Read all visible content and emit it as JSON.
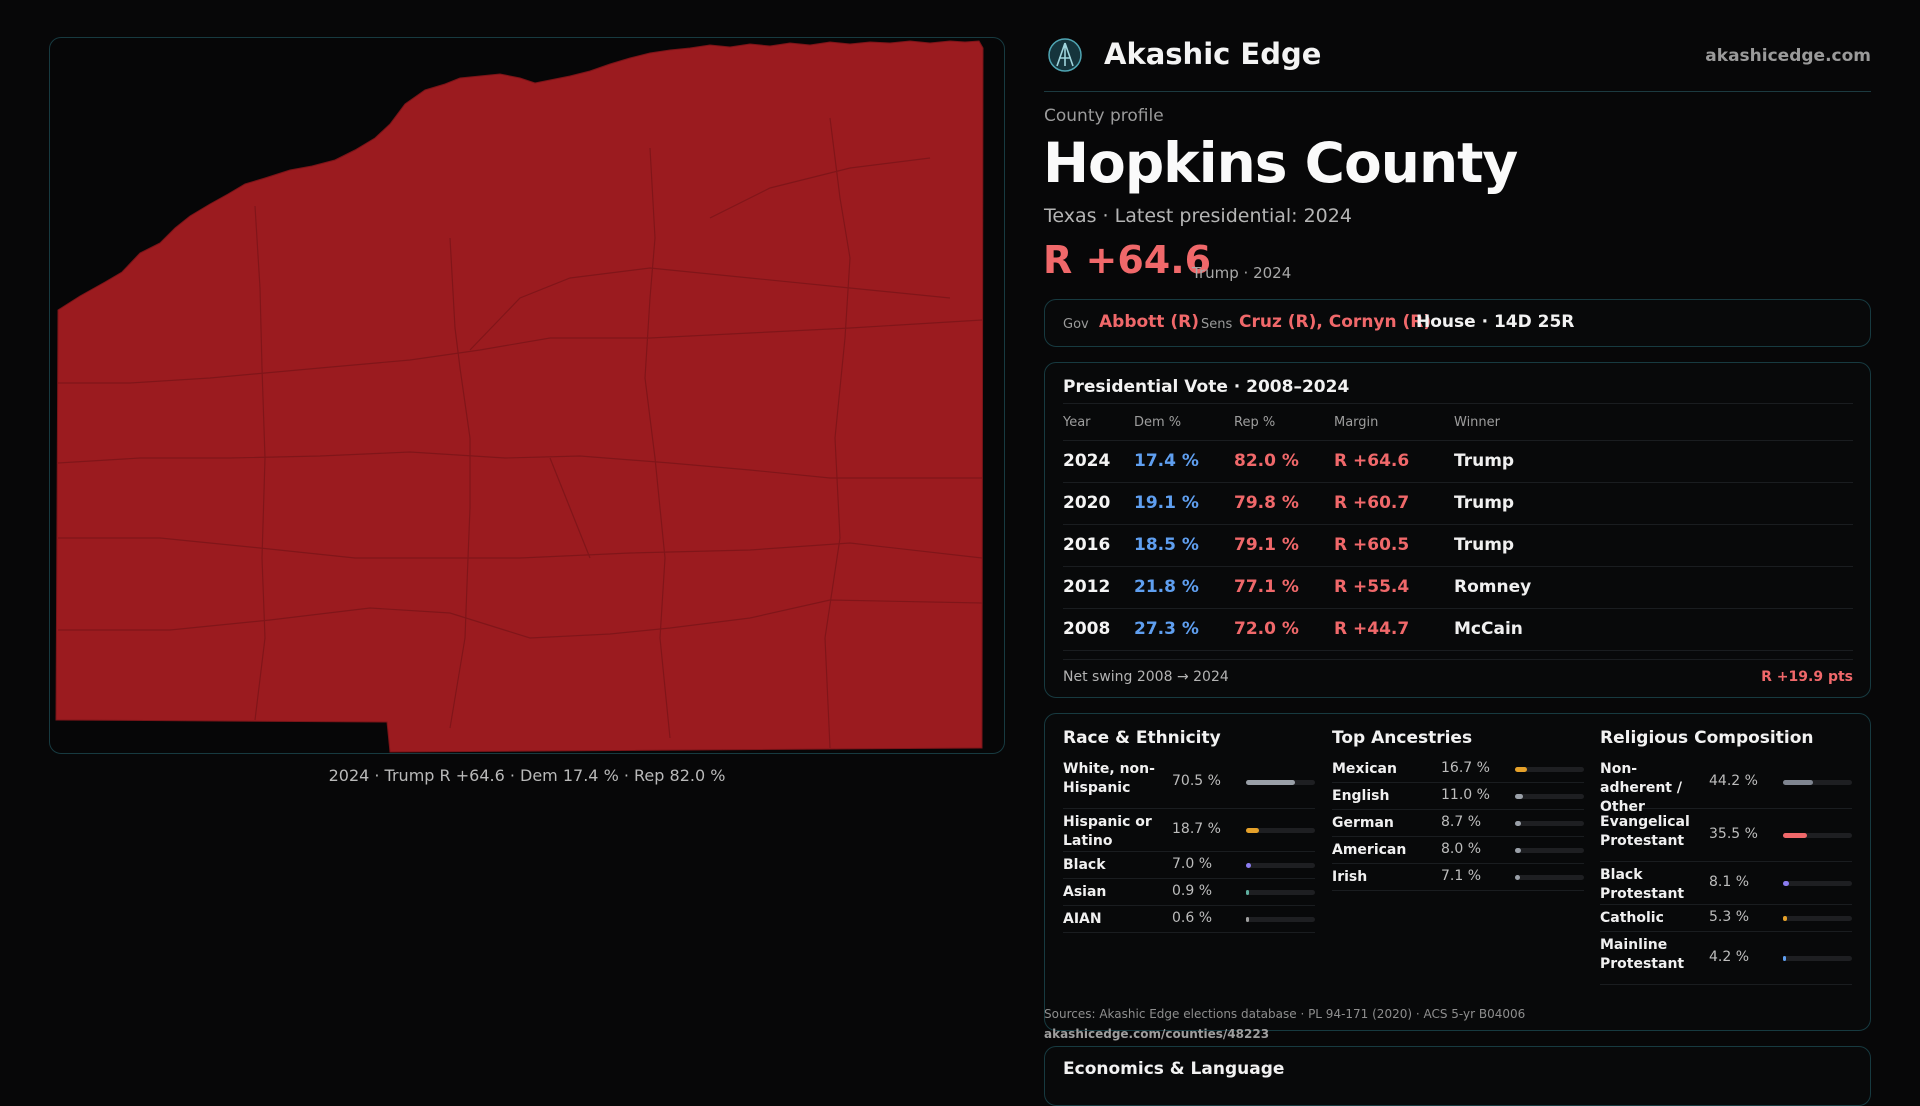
{
  "brand": {
    "name": "Akashic Edge",
    "site": "akashicedge.com"
  },
  "map": {
    "caption": "2024 · Trump R +64.6 · Dem 17.4 % · Rep 82.0 %",
    "fill_color": "#9b1b1f",
    "border_color": "#7a1418"
  },
  "profile": {
    "kicker": "County profile",
    "county": "Hopkins County",
    "subtitle": "Texas · Latest presidential: 2024",
    "margin": "R +64.6",
    "margin_sub": "Trump · 2024"
  },
  "officials": {
    "gov_label": "Gov",
    "gov_value": "Abbott (R)",
    "sens_label": "Sens",
    "sens_value": "Cruz (R), Cornyn (R)",
    "house": "House · 14D 25R"
  },
  "presidential": {
    "title": "Presidential Vote · 2008–2024",
    "headers": {
      "year": "Year",
      "dem": "Dem %",
      "rep": "Rep %",
      "margin": "Margin",
      "winner": "Winner"
    },
    "rows": [
      {
        "year": "2024",
        "dem": "17.4 %",
        "rep": "82.0 %",
        "margin": "R +64.6",
        "winner": "Trump"
      },
      {
        "year": "2020",
        "dem": "19.1 %",
        "rep": "79.8 %",
        "margin": "R +60.7",
        "winner": "Trump"
      },
      {
        "year": "2016",
        "dem": "18.5 %",
        "rep": "79.1 %",
        "margin": "R +60.5",
        "winner": "Trump"
      },
      {
        "year": "2012",
        "dem": "21.8 %",
        "rep": "77.1 %",
        "margin": "R +55.4",
        "winner": "Romney"
      },
      {
        "year": "2008",
        "dem": "27.3 %",
        "rep": "72.0 %",
        "margin": "R +44.7",
        "winner": "McCain"
      }
    ],
    "swing_label": "Net swing 2008 → 2024",
    "swing_value": "R +19.9 pts"
  },
  "race": {
    "title": "Race & Ethnicity",
    "rows": [
      {
        "label": "White, non-Hispanic",
        "value": "70.5 %",
        "pct": 70.5,
        "color": "#9aa0a8"
      },
      {
        "label": "Hispanic or Latino",
        "value": "18.7 %",
        "pct": 18.7,
        "color": "#e5a12a"
      },
      {
        "label": "Black",
        "value": "7.0 %",
        "pct": 7.0,
        "color": "#8b7cf0"
      },
      {
        "label": "Asian",
        "value": "0.9 %",
        "pct": 0.9,
        "color": "#5fb0a0"
      },
      {
        "label": "AIAN",
        "value": "0.6 %",
        "pct": 0.6,
        "color": "#a0a0a0"
      }
    ]
  },
  "ancestry": {
    "title": "Top Ancestries",
    "rows": [
      {
        "label": "Mexican",
        "value": "16.7 %",
        "pct": 16.7,
        "color": "#e5a12a"
      },
      {
        "label": "English",
        "value": "11.0 %",
        "pct": 11.0,
        "color": "#9aa0a8"
      },
      {
        "label": "German",
        "value": "8.7 %",
        "pct": 8.7,
        "color": "#9aa0a8"
      },
      {
        "label": "American",
        "value": "8.0 %",
        "pct": 8.0,
        "color": "#9aa0a8"
      },
      {
        "label": "Irish",
        "value": "7.1 %",
        "pct": 7.1,
        "color": "#9aa0a8"
      }
    ]
  },
  "religion": {
    "title": "Religious Composition",
    "rows": [
      {
        "label": "Non-adherent / Other",
        "value": "44.2 %",
        "pct": 44.2,
        "color": "#7f8590"
      },
      {
        "label": "Evangelical Protestant",
        "value": "35.5 %",
        "pct": 35.5,
        "color": "#f0686a"
      },
      {
        "label": "Black Protestant",
        "value": "8.1 %",
        "pct": 8.1,
        "color": "#8b7cf0"
      },
      {
        "label": "Catholic",
        "value": "5.3 %",
        "pct": 5.3,
        "color": "#e5a12a"
      },
      {
        "label": "Mainline Protestant",
        "value": "4.2 %",
        "pct": 4.2,
        "color": "#5f9ff0"
      }
    ]
  },
  "sources": {
    "text": "Sources: Akashic Edge elections database · PL 94-171 (2020) · ACS 5-yr B04006",
    "url": "akashicedge.com/counties/48223"
  },
  "economics": {
    "title": "Economics & Language"
  }
}
